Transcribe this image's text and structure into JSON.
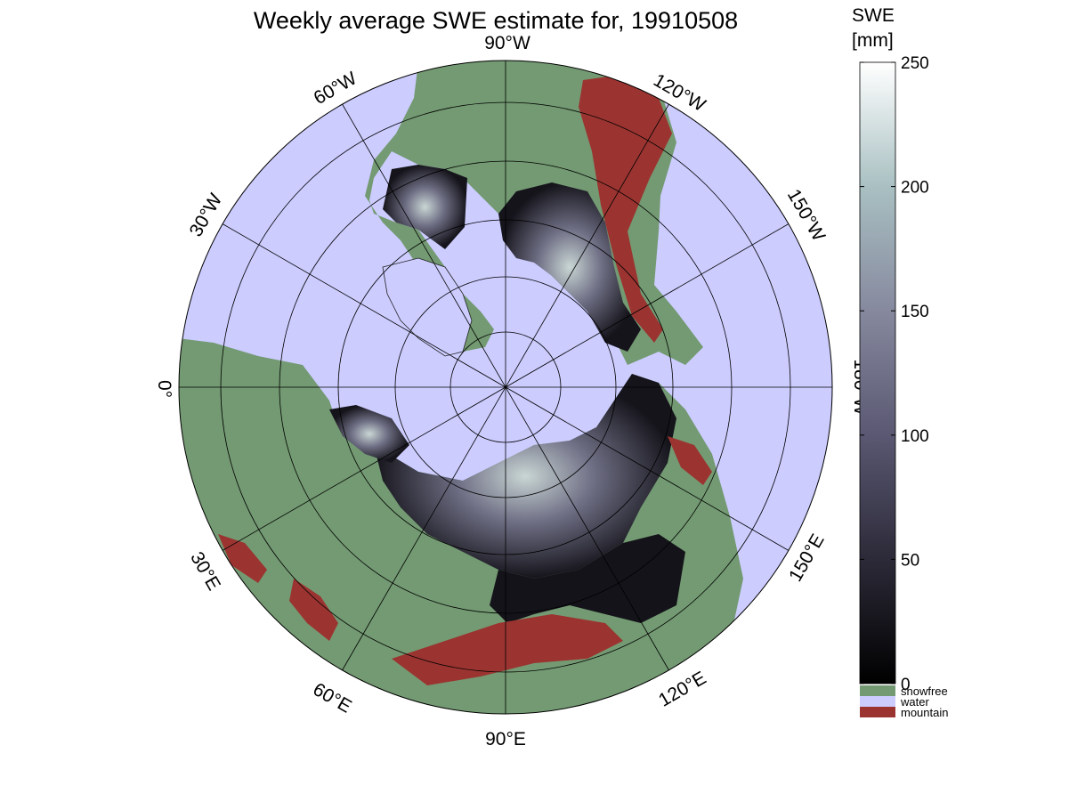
{
  "title": "Weekly average SWE estimate for, 19910508",
  "map": {
    "projection": "north-polar-stereographic",
    "longitude_labels": [
      {
        "text": "90°W",
        "lon": "90W"
      },
      {
        "text": "120°W",
        "lon": "120W"
      },
      {
        "text": "150°W",
        "lon": "150W"
      },
      {
        "text": "180°W",
        "lon": "180W"
      },
      {
        "text": "150°E",
        "lon": "150E"
      },
      {
        "text": "120°E",
        "lon": "120E"
      },
      {
        "text": "90°E",
        "lon": "90E"
      },
      {
        "text": "60°E",
        "lon": "60E"
      },
      {
        "text": "30°E",
        "lon": "30E"
      },
      {
        "text": "0°",
        "lon": "0"
      },
      {
        "text": "30°W",
        "lon": "30W"
      },
      {
        "text": "60°W",
        "lon": "60W"
      }
    ],
    "latitude_circles": 5
  },
  "colorbar": {
    "title_line1": "SWE",
    "title_line2": "[mm]",
    "ticks": [
      "0",
      "50",
      "100",
      "150",
      "200",
      "250"
    ],
    "range": [
      0,
      250
    ],
    "colors": [
      "#000000",
      "#2c2a38",
      "#5a5872",
      "#86899e",
      "#a9c0c2",
      "#ffffff"
    ]
  },
  "categories": [
    {
      "label": "snowfree",
      "color": "#739a72"
    },
    {
      "label": "water",
      "color": "#ccccff"
    },
    {
      "label": "mountain",
      "color": "#9b3431"
    }
  ]
}
